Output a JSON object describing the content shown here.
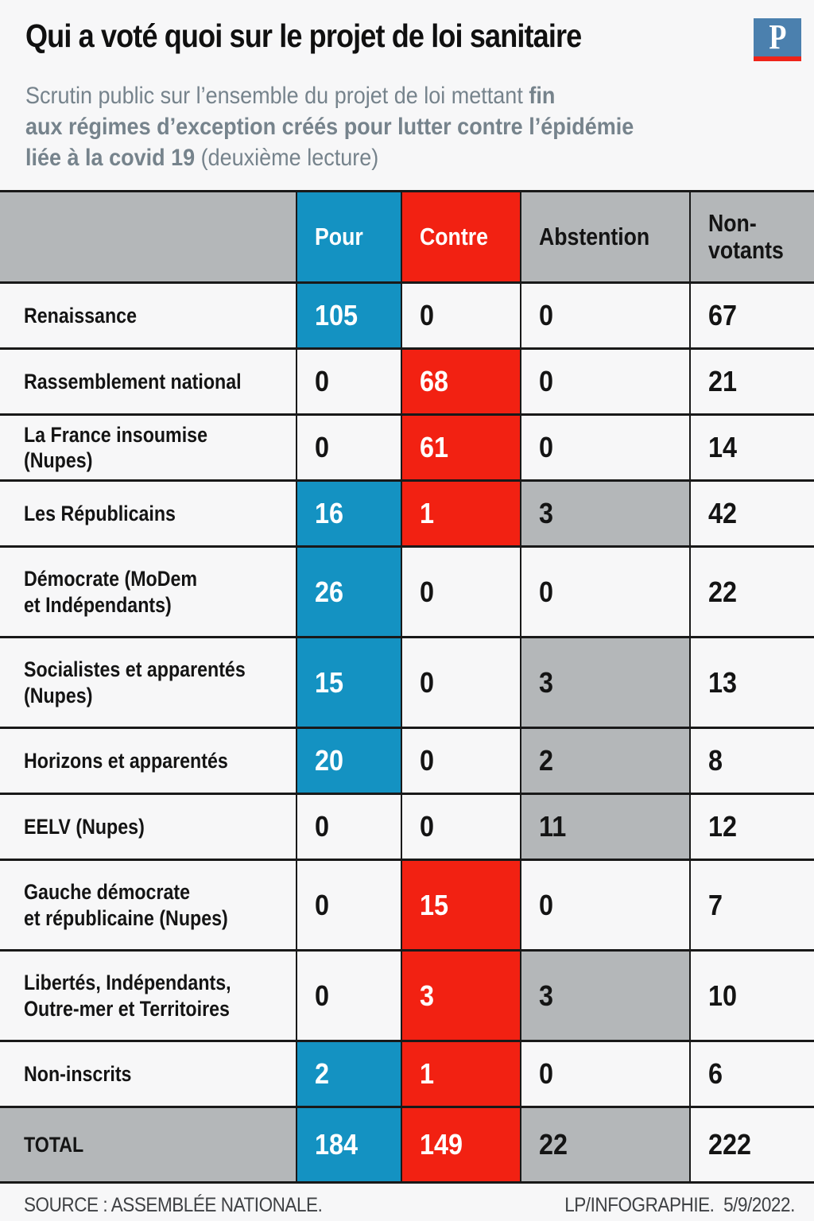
{
  "colors": {
    "blue": "#1492c2",
    "red": "#f22112",
    "gray": "#b4b7b9",
    "line": "#191919",
    "bg": "#f7f7f8"
  },
  "brand": {
    "logo_letter": "P",
    "logo_blue": "#4b80ae",
    "logo_red": "#ee2419"
  },
  "header": {
    "title": "Qui a voté quoi sur le projet de loi sanitaire",
    "subtitle_parts": [
      {
        "text": "Scrutin public sur l’ensemble du projet de loi mettant ",
        "bold": false
      },
      {
        "text": "fin\naux régimes d’exception créés pour lutter contre l’épidémie\nliée à la covid 19",
        "bold": true
      },
      {
        "text": " (deuxième lecture)",
        "bold": false
      }
    ]
  },
  "chart_data": {
    "type": "table",
    "title": "Qui a voté quoi sur le projet de loi sanitaire",
    "columns": [
      {
        "id": "pour",
        "label": "Pour",
        "style": "blue"
      },
      {
        "id": "contre",
        "label": "Contre",
        "style": "red"
      },
      {
        "id": "abstention",
        "label": "Abstention",
        "style": "gray-head"
      },
      {
        "id": "nonvotants",
        "label": "Non-\nvotants",
        "style": "gray-head"
      }
    ],
    "rows": [
      {
        "party": "Renaissance",
        "pour": 105,
        "contre": 0,
        "abstention": 0,
        "nonvotants": 67
      },
      {
        "party": "Rassemblement national",
        "pour": 0,
        "contre": 68,
        "abstention": 0,
        "nonvotants": 21
      },
      {
        "party": "La France insoumise (Nupes)",
        "pour": 0,
        "contre": 61,
        "abstention": 0,
        "nonvotants": 14
      },
      {
        "party": "Les Républicains",
        "pour": 16,
        "contre": 1,
        "abstention": 3,
        "nonvotants": 42
      },
      {
        "party": "Démocrate (MoDem\net Indépendants)",
        "pour": 26,
        "contre": 0,
        "abstention": 0,
        "nonvotants": 22
      },
      {
        "party": "Socialistes et apparentés\n(Nupes)",
        "pour": 15,
        "contre": 0,
        "abstention": 3,
        "nonvotants": 13
      },
      {
        "party": "Horizons et apparentés",
        "pour": 20,
        "contre": 0,
        "abstention": 2,
        "nonvotants": 8
      },
      {
        "party": "EELV (Nupes)",
        "pour": 0,
        "contre": 0,
        "abstention": 11,
        "nonvotants": 12
      },
      {
        "party": "Gauche démocrate\net républicaine (Nupes)",
        "pour": 0,
        "contre": 15,
        "abstention": 0,
        "nonvotants": 7
      },
      {
        "party": "Libertés, Indépendants,\nOutre-mer et Territoires",
        "pour": 0,
        "contre": 3,
        "abstention": 3,
        "nonvotants": 10
      },
      {
        "party": "Non-inscrits",
        "pour": 2,
        "contre": 1,
        "abstention": 0,
        "nonvotants": 6
      }
    ],
    "total_row": {
      "party": "TOTAL",
      "pour": 184,
      "contre": 149,
      "abstention": 22,
      "nonvotants": 222
    }
  },
  "footer": {
    "source": "SOURCE : ASSEMBLÉE NATIONALE.",
    "credit": "LP/INFOGRAPHIE.  5/9/2022."
  }
}
